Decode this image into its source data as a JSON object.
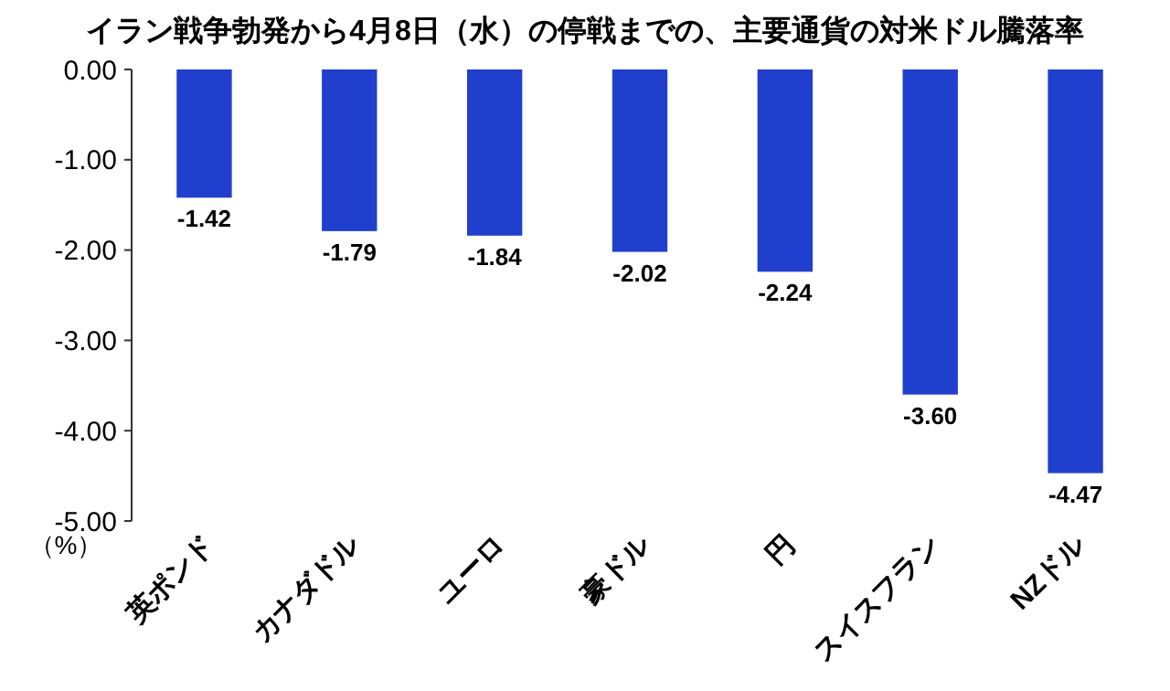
{
  "chart_data": {
    "type": "bar",
    "title": "イラン戦争勃発から4月8日（水）の停戦までの、主要通貨の対米ドル騰落率",
    "ylabel": "（%）",
    "categories": [
      "英ポンド",
      "カナダドル",
      "ユーロ",
      "豪ドル",
      "円",
      "スイスフラン",
      "NZドル"
    ],
    "values": [
      -1.42,
      -1.79,
      -1.84,
      -2.02,
      -2.24,
      -3.6,
      -4.47
    ],
    "value_labels": [
      "-1.42",
      "-1.79",
      "-1.84",
      "-2.02",
      "-2.24",
      "-3.60",
      "-4.47"
    ],
    "color": "#1f3fcc",
    "ylim": [
      -5,
      0
    ],
    "yticks": [
      {
        "value": 0,
        "label": "0.00"
      },
      {
        "value": -1,
        "label": "-1.00"
      },
      {
        "value": -2,
        "label": "-2.00"
      },
      {
        "value": -3,
        "label": "-3.00"
      },
      {
        "value": -4,
        "label": "-4.00"
      },
      {
        "value": -5,
        "label": "-5.00"
      }
    ],
    "grid": false
  }
}
